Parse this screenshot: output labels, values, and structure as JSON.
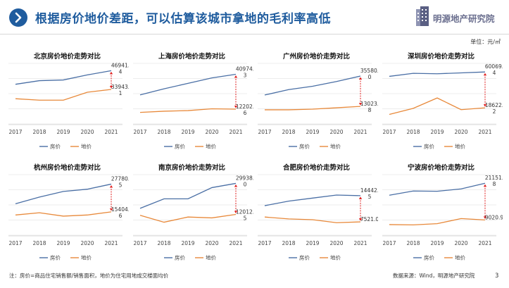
{
  "header": {
    "title": "根据房价地价差距，可以估算该城市拿地的毛利率高低",
    "logo_text": "明源地产研究院"
  },
  "unit_label": "单位：元/㎡",
  "colors": {
    "house": "#4a6fa5",
    "land": "#e8893a",
    "marker": "#e02020"
  },
  "legend": {
    "house": "房价",
    "land": "地价"
  },
  "chart_data": [
    {
      "type": "line",
      "title": "北京房价地价走势对比",
      "categories": [
        "2017",
        "2018",
        "2019",
        "2020",
        "2021"
      ],
      "series": [
        {
          "name": "房价",
          "values": [
            37500,
            40000,
            40500,
            44000,
            46941.4
          ]
        },
        {
          "name": "地价",
          "values": [
            27500,
            26500,
            26500,
            32000,
            33943.1
          ]
        }
      ],
      "ylim": [
        10000,
        52000
      ],
      "labels": {
        "house": "46941.4",
        "land": "33943.1"
      }
    },
    {
      "type": "line",
      "title": "上海房价地价走势对比",
      "categories": [
        "2017",
        "2018",
        "2019",
        "2020",
        "2021"
      ],
      "series": [
        {
          "name": "房价",
          "values": [
            24000,
            29000,
            33500,
            38000,
            40974.3
          ]
        },
        {
          "name": "地价",
          "values": [
            9500,
            10500,
            11000,
            12500,
            12202.6
          ]
        }
      ],
      "ylim": [
        0,
        50000
      ],
      "labels": {
        "house": "40974.3",
        "land": "12202.6"
      }
    },
    {
      "type": "line",
      "title": "广州房价地价走势对比",
      "categories": [
        "2017",
        "2018",
        "2019",
        "2020",
        "2021"
      ],
      "series": [
        {
          "name": "房价",
          "values": [
            21500,
            25500,
            28000,
            31500,
            35580.0
          ]
        },
        {
          "name": "地价",
          "values": [
            10500,
            10500,
            11000,
            12000,
            13023.8
          ]
        }
      ],
      "ylim": [
        0,
        45000
      ],
      "labels": {
        "house": "35580.0",
        "land": "13023.8"
      }
    },
    {
      "type": "line",
      "title": "深圳房价地价走势对比",
      "categories": [
        "2017",
        "2018",
        "2019",
        "2020",
        "2021"
      ],
      "series": [
        {
          "name": "房价",
          "values": [
            55000,
            58500,
            58000,
            59000,
            60069.4
          ]
        },
        {
          "name": "地价",
          "values": [
            11000,
            18000,
            30000,
            16500,
            18622.2
          ]
        }
      ],
      "ylim": [
        0,
        70000
      ],
      "labels": {
        "house": "60069.4",
        "land": "18622.2"
      }
    },
    {
      "type": "line",
      "title": "杭州房价地价走势对比",
      "categories": [
        "2017",
        "2018",
        "2019",
        "2020",
        "2021"
      ],
      "series": [
        {
          "name": "房价",
          "values": [
            19000,
            22000,
            24500,
            25500,
            27780.5
          ]
        },
        {
          "name": "地价",
          "values": [
            14000,
            15000,
            13500,
            14000,
            15404.6
          ]
        }
      ],
      "ylim": [
        5000,
        32000
      ],
      "labels": {
        "house": "27780.5",
        "land": "15404.6"
      }
    },
    {
      "type": "line",
      "title": "南京房价地价走势对比",
      "categories": [
        "2017",
        "2018",
        "2019",
        "2020",
        "2021"
      ],
      "series": [
        {
          "name": "房价",
          "values": [
            15500,
            21000,
            21000,
            27500,
            29938.0
          ]
        },
        {
          "name": "地价",
          "values": [
            11500,
            7500,
            10500,
            10000,
            12012.5
          ]
        }
      ],
      "ylim": [
        0,
        35000
      ],
      "labels": {
        "house": "29938.0",
        "land": "12012.5"
      }
    },
    {
      "type": "line",
      "title": "合肥房价地价走势对比",
      "categories": [
        "2017",
        "2018",
        "2019",
        "2020",
        "2021"
      ],
      "series": [
        {
          "name": "房价",
          "values": [
            11800,
            13000,
            13800,
            14600,
            14442.5
          ]
        },
        {
          "name": "地价",
          "values": [
            8800,
            8300,
            8100,
            7300,
            7521.0
          ]
        }
      ],
      "ylim": [
        4000,
        20000
      ],
      "labels": {
        "house": "14442.5",
        "land": "7521.0"
      }
    },
    {
      "type": "line",
      "title": "宁波房价地价走势对比",
      "categories": [
        "2017",
        "2018",
        "2019",
        "2020",
        "2021"
      ],
      "series": [
        {
          "name": "房价",
          "values": [
            17200,
            18600,
            18500,
            19300,
            21151.8
          ]
        },
        {
          "name": "地价",
          "values": [
            7500,
            7400,
            7800,
            9500,
            9020.9
          ]
        }
      ],
      "ylim": [
        4000,
        24000
      ],
      "labels": {
        "house": "21151.8",
        "land": "9020.9"
      }
    }
  ],
  "footer": {
    "note": "注：房价=商品住宅销售额/销售面积，地价为住宅用地成交楼面均价",
    "source": "数据来源：Wind，明源地产研究院",
    "page": "3"
  }
}
